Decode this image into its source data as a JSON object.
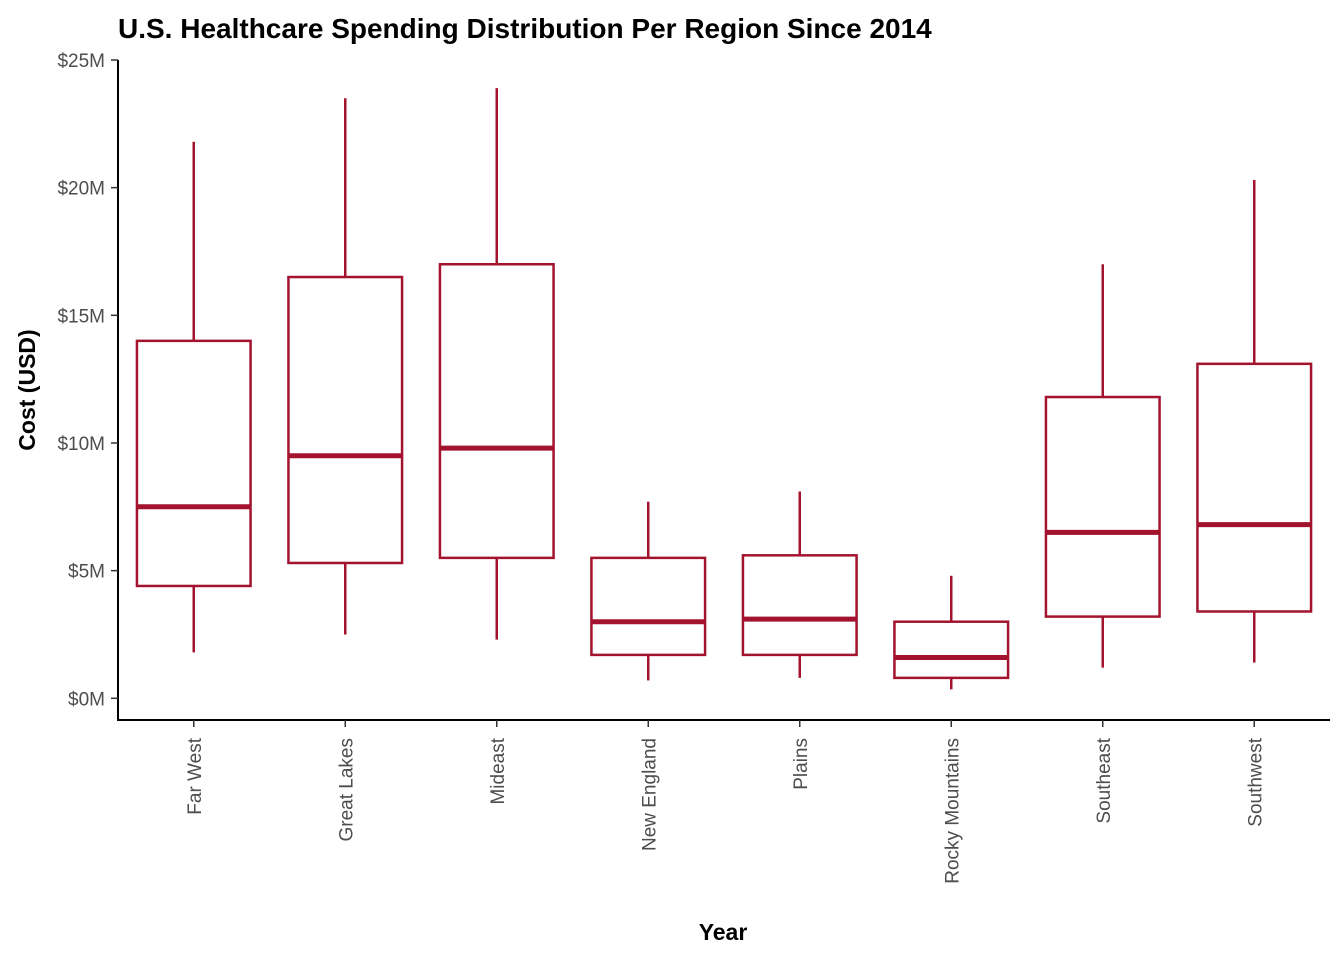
{
  "chart_data": {
    "type": "box",
    "title": "U.S. Healthcare Spending Distribution Per Region Since 2014",
    "xlabel": "Year",
    "ylabel": "Cost (USD)",
    "ylim": [
      -0.85,
      25
    ],
    "y_ticks": [
      0,
      5,
      10,
      15,
      20,
      25
    ],
    "y_tick_labels": [
      "$0M",
      "$5M",
      "$10M",
      "$15M",
      "$20M",
      "$25M"
    ],
    "y_unit": "millions USD",
    "grid": false,
    "legend": "none",
    "colors": {
      "box": "#a3132e",
      "axis": "#000000",
      "tick_label": "#4d4d4d"
    },
    "categories": [
      "Far West",
      "Great Lakes",
      "Mideast",
      "New England",
      "Plains",
      "Rocky Mountains",
      "Southeast",
      "Southwest"
    ],
    "boxes": [
      {
        "category": "Far West",
        "min": 1.8,
        "q1": 4.4,
        "median": 7.5,
        "q3": 14.0,
        "max": 21.8
      },
      {
        "category": "Great Lakes",
        "min": 2.5,
        "q1": 5.3,
        "median": 9.5,
        "q3": 16.5,
        "max": 23.5
      },
      {
        "category": "Mideast",
        "min": 2.3,
        "q1": 5.5,
        "median": 9.8,
        "q3": 17.0,
        "max": 23.9
      },
      {
        "category": "New England",
        "min": 0.7,
        "q1": 1.7,
        "median": 3.0,
        "q3": 5.5,
        "max": 7.7
      },
      {
        "category": "Plains",
        "min": 0.8,
        "q1": 1.7,
        "median": 3.1,
        "q3": 5.6,
        "max": 8.1
      },
      {
        "category": "Rocky Mountains",
        "min": 0.35,
        "q1": 0.8,
        "median": 1.6,
        "q3": 3.0,
        "max": 4.8
      },
      {
        "category": "Southeast",
        "min": 1.2,
        "q1": 3.2,
        "median": 6.5,
        "q3": 11.8,
        "max": 17.0
      },
      {
        "category": "Southwest",
        "min": 1.4,
        "q1": 3.4,
        "median": 6.8,
        "q3": 13.1,
        "max": 20.3
      }
    ]
  }
}
